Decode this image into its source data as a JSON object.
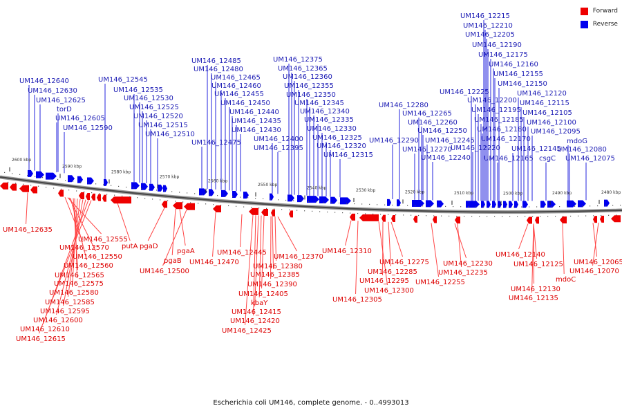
{
  "legend": {
    "forward": {
      "label": "Forward",
      "color": "#ee0000"
    },
    "reverse": {
      "label": "Reverse",
      "color": "#0000ee"
    }
  },
  "caption": "Escherichia coli UM146, complete genome. - 0..4993013",
  "ticks": [
    "2600 kbp",
    "2590 kbp",
    "2580 kbp",
    "2570 kbp",
    "2560 kbp",
    "2550 kbp",
    "2540 kbp",
    "2530 kbp",
    "2520 kbp",
    "2510 kbp",
    "2500 kbp",
    "2490 kbp",
    "2480 kbp"
  ],
  "reverse_labels": [
    "UM146_12640",
    "UM146_12630",
    "UM146_12625",
    "torD",
    "UM146_12605",
    "UM146_12590",
    "UM146_12545",
    "UM146_12535",
    "UM146_12530",
    "UM146_12525",
    "UM146_12520",
    "UM146_12515",
    "UM146_12510",
    "UM146_12485",
    "UM146_12480",
    "UM146_12465",
    "UM146_12460",
    "UM146_12455",
    "UM146_12450",
    "UM146_12440",
    "UM146_12435",
    "UM146_12430",
    "UM146_12475",
    "UM146_12400",
    "UM146_12395",
    "UM146_12375",
    "UM146_12365",
    "UM146_12360",
    "UM146_12355",
    "UM146_12350",
    "UM146_12345",
    "UM146_12340",
    "UM146_12335",
    "UM146_12330",
    "UM146_12325",
    "UM146_12320",
    "UM146_12315",
    "UM146_12280",
    "UM146_12265",
    "UM146_12260",
    "UM146_12290",
    "UM146_12250",
    "UM146_12270",
    "UM146_12245",
    "UM146_12240",
    "UM146_12215",
    "UM146_12210",
    "UM146_12205",
    "UM146_12190",
    "UM146_12175",
    "UM146_12160",
    "UM146_12155",
    "UM146_12150",
    "UM146_12225",
    "UM146_12200",
    "UM146_12195",
    "UM146_12185",
    "UM146_12180",
    "UM146_12170",
    "UM146_12220",
    "UM146_12165",
    "UM146_12120",
    "UM146_12115",
    "UM146_12105",
    "UM146_12100",
    "UM146_12095",
    "UM146_12145",
    "csgC",
    "mdoG",
    "UM146_12080",
    "UM146_12075"
  ],
  "forward_labels": [
    "UM146_12635",
    "UM146_12555",
    "UM146_12570",
    "UM146_12550",
    "UM146_12560",
    "UM146_12565",
    "UM146_12575",
    "UM146_12580",
    "UM146_12585",
    "UM146_12595",
    "UM146_12600",
    "UM146_12610",
    "UM146_12615",
    "putA",
    "pgaD",
    "pgaA",
    "pgaB",
    "UM146_12500",
    "UM146_12470",
    "UM146_12445",
    "UM146_12370",
    "UM146_12380",
    "UM146_12385",
    "UM146_12390",
    "UM146_12405",
    "kbaY",
    "UM146_12415",
    "UM146_12420",
    "UM146_12425",
    "UM146_12310",
    "UM146_12275",
    "UM146_12285",
    "UM146_12295",
    "UM146_12300",
    "UM146_12305",
    "UM146_12230",
    "UM146_12255",
    "UM146_12235",
    "UM146_12140",
    "UM146_12125",
    "UM146_12130",
    "UM146_12135",
    "mdoC",
    "UM146_12065",
    "UM146_12070"
  ]
}
